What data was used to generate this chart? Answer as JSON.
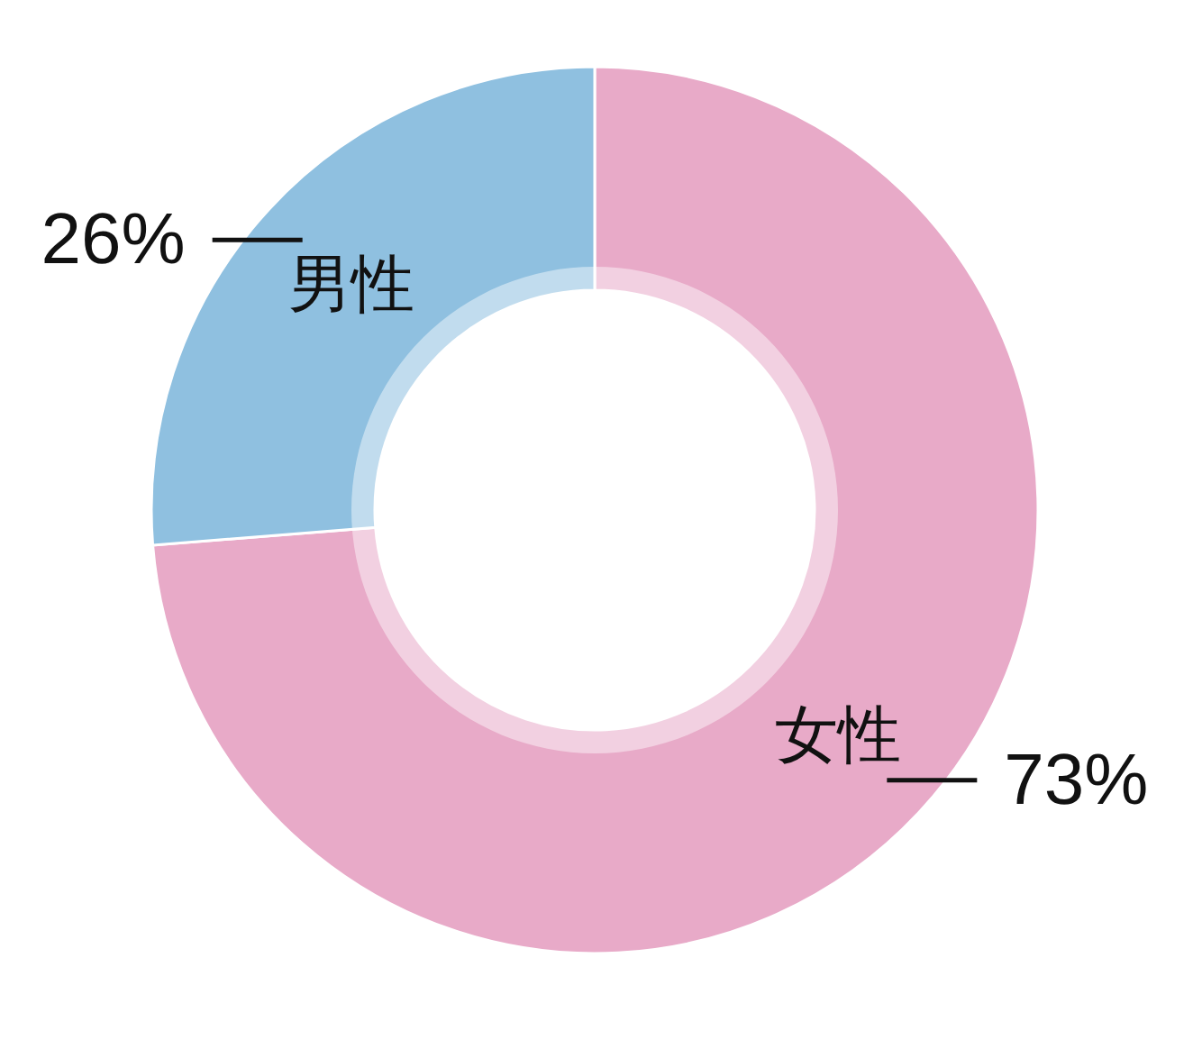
{
  "chart_data": {
    "type": "donut",
    "categories": [
      "女性",
      "男性"
    ],
    "values": [
      73,
      26
    ],
    "colors": [
      "#e8aac8",
      "#8fc0e0"
    ],
    "value_labels": [
      "73%",
      "26%"
    ]
  }
}
